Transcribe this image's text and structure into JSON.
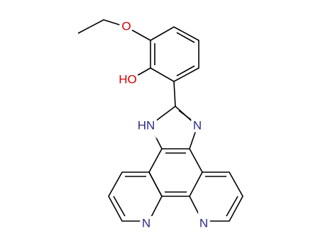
{
  "atoms": {
    "ether_oxygen": "O",
    "hydroxyl": "HO",
    "imidazole_nh": "HN",
    "imidazole_n": "N",
    "pyridine_n_left": "N",
    "pyridine_n_right": "N"
  }
}
